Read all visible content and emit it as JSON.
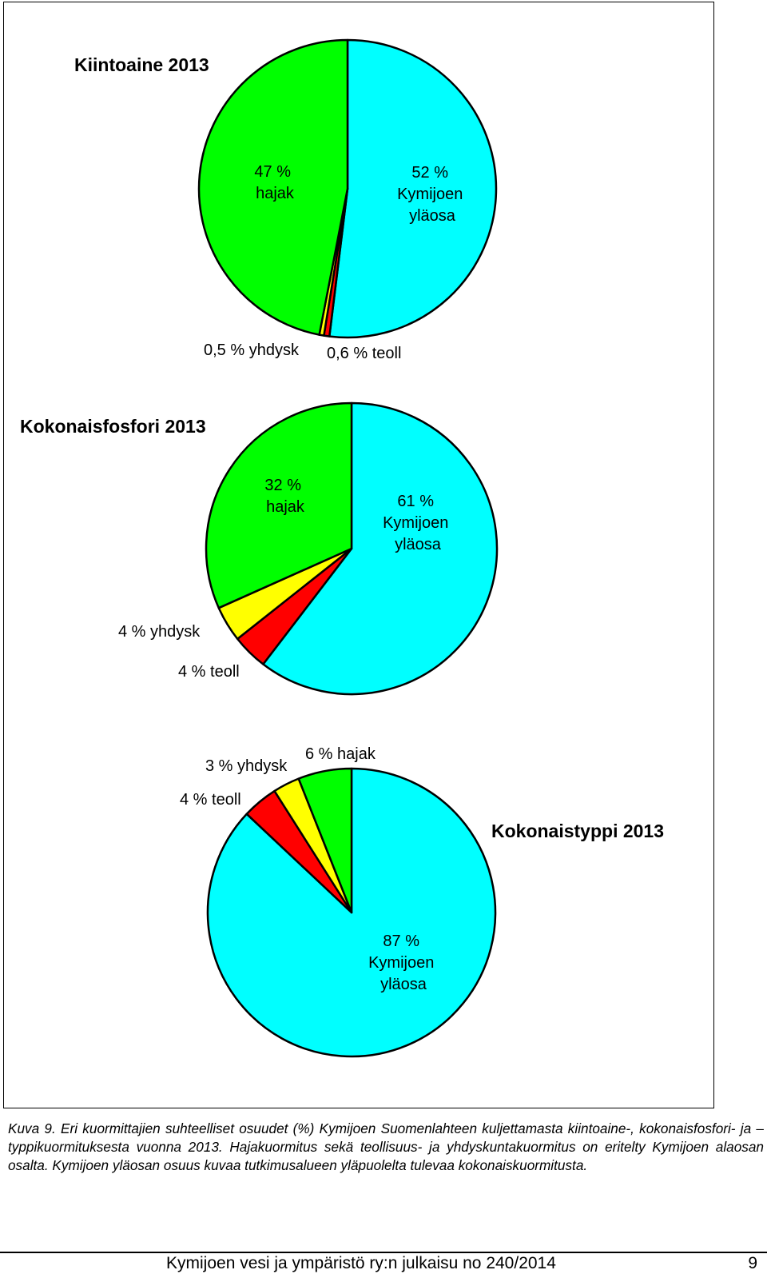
{
  "colors": {
    "kymijoen": "#00ffff",
    "hajak": "#00ff00",
    "yhdysk": "#ffff00",
    "teoll": "#ff0000",
    "stroke": "#000000"
  },
  "chart_data": [
    {
      "type": "pie",
      "title": "Kiintoaine 2013",
      "slices": [
        {
          "key": "kymijoen",
          "value": 52,
          "label_lines": [
            "52 %",
            "Kymijoen",
            "yläosa"
          ]
        },
        {
          "key": "teoll",
          "value": 0.6,
          "label_lines": [
            "0,6 % teoll"
          ]
        },
        {
          "key": "yhdysk",
          "value": 0.5,
          "label_lines": [
            "0,5 % yhdysk"
          ]
        },
        {
          "key": "hajak",
          "value": 47,
          "label_lines": [
            "47 %",
            "hajak"
          ]
        }
      ]
    },
    {
      "type": "pie",
      "title": "Kokonaisfosfori 2013",
      "slices": [
        {
          "key": "kymijoen",
          "value": 61,
          "label_lines": [
            "61 %",
            "Kymijoen",
            "yläosa"
          ]
        },
        {
          "key": "teoll",
          "value": 4,
          "label_lines": [
            "4 % teoll"
          ]
        },
        {
          "key": "yhdysk",
          "value": 4,
          "label_lines": [
            "4 % yhdysk"
          ]
        },
        {
          "key": "hajak",
          "value": 32,
          "label_lines": [
            "32 %",
            "hajak"
          ]
        }
      ]
    },
    {
      "type": "pie",
      "title": "Kokonaistyppi 2013",
      "slices": [
        {
          "key": "kymijoen",
          "value": 87,
          "label_lines": [
            "87 %",
            "Kymijoen",
            "yläosa"
          ]
        },
        {
          "key": "teoll",
          "value": 4,
          "label_lines": [
            "4 % teoll"
          ]
        },
        {
          "key": "yhdysk",
          "value": 3,
          "label_lines": [
            "3 % yhdysk"
          ]
        },
        {
          "key": "hajak",
          "value": 6,
          "label_lines": [
            "6 % hajak"
          ]
        }
      ]
    }
  ],
  "caption": {
    "text": "Kuva 9. Eri kuormittajien suhteelliset osuudet (%) Kymijoen Suomenlahteen kuljettamasta kiintoaine-, kokonaisfosfori- ja –typpikuormituksesta vuonna 2013. Hajakuormitus sekä teollisuus- ja yhdyskuntakuormitus on eritelty Kymijoen alaosan osalta. Kymijoen yläosan osuus kuvaa tutkimusalueen yläpuolelta tulevaa kokonaiskuormitusta."
  },
  "footer": {
    "publication": "Kymijoen vesi ja ympäristö ry:n julkaisu no 240/2014",
    "page_number": "9"
  }
}
